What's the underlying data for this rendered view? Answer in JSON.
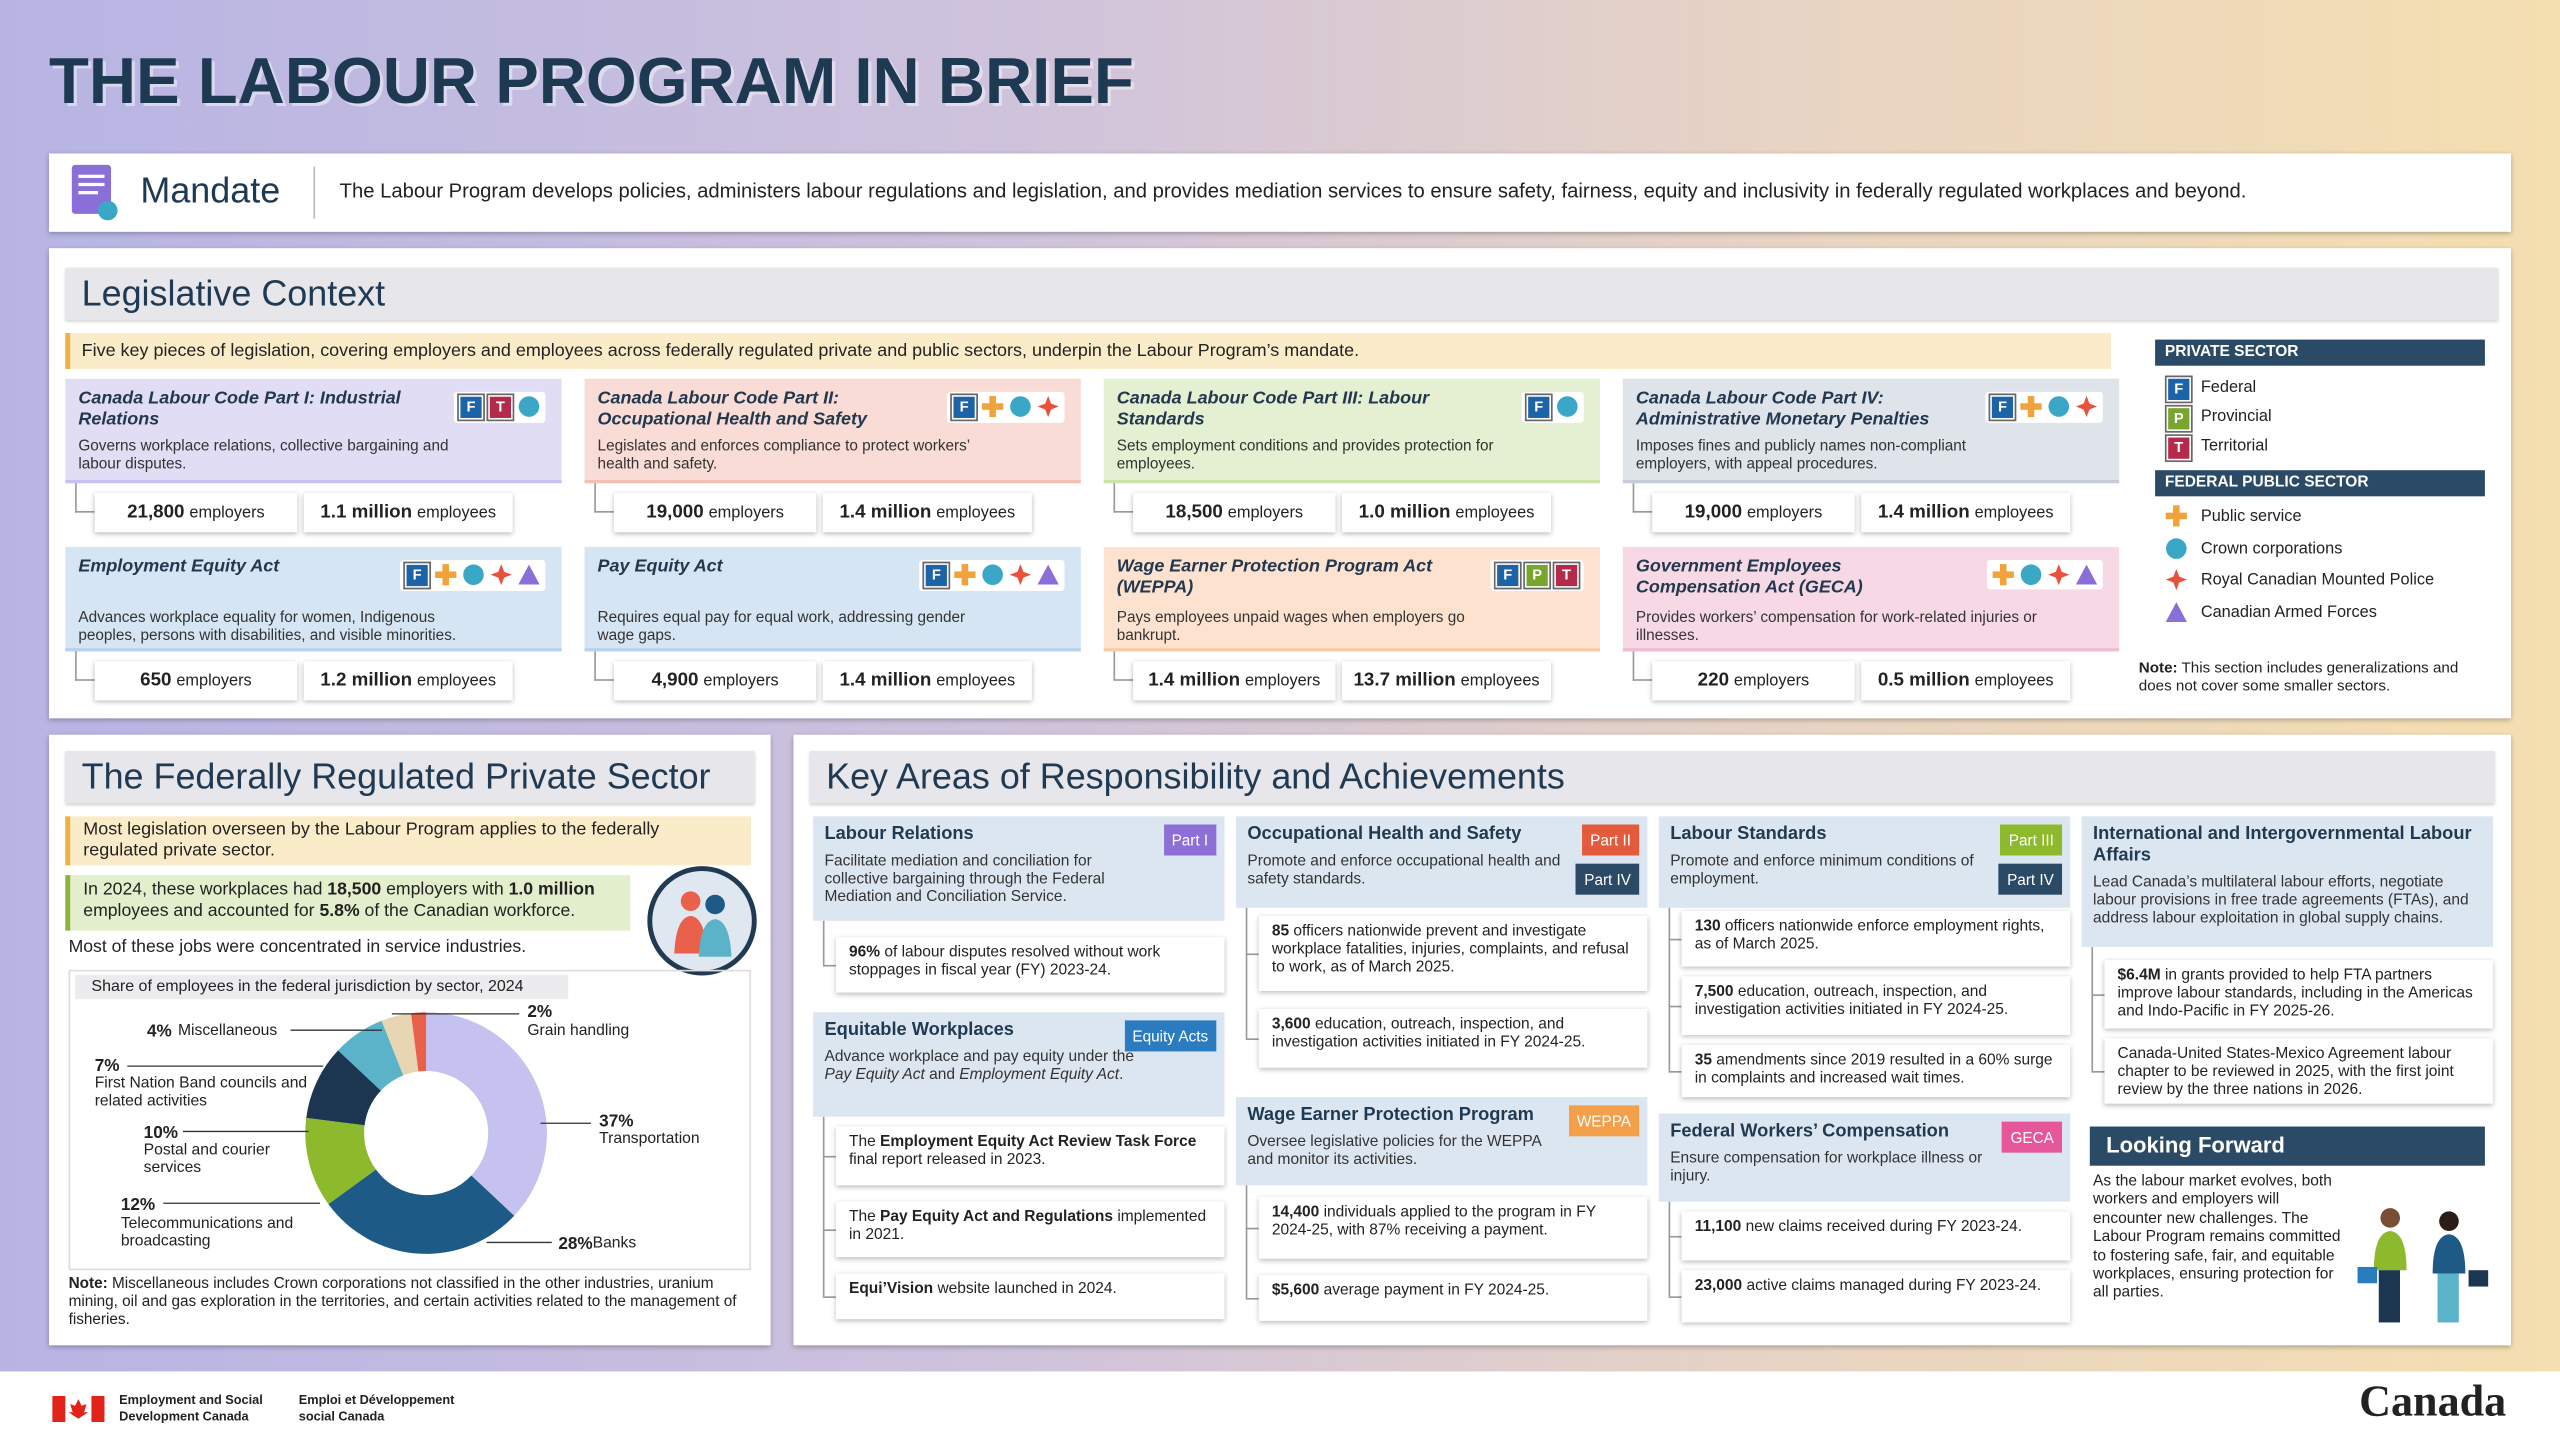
{
  "header": {
    "title": "THE LABOUR PROGRAM IN BRIEF"
  },
  "mandate": {
    "label": "Mandate",
    "text": "The Labour Program develops policies, administers labour regulations and legislation, and provides mediation services to ensure safety, fairness, equity and inclusivity in federally regulated workplaces and beyond."
  },
  "legislative_context": {
    "title": "Legislative Context",
    "intro": "Five key pieces of legislation, covering employers and employees across federally regulated private and public sectors, underpin the Labour Program’s mandate.",
    "acts": [
      {
        "name": "Canada Labour Code Part I: Industrial Relations",
        "description": "Governs workplace relations, collective bargaining and labour disputes.",
        "badges": [
          "F",
          "T"
        ],
        "stats": [
          {
            "value": "21,800",
            "unit": "employers"
          },
          {
            "value": "1.1 million",
            "unit": "employees"
          }
        ]
      },
      {
        "name": "Canada Labour Code Part II: Occupational Health and Safety",
        "description": "Legislates and enforces compliance to protect workers’ health and safety.",
        "badges": [
          "F"
        ],
        "stats": [
          {
            "value": "19,000",
            "unit": "employers"
          },
          {
            "value": "1.4 million",
            "unit": "employees"
          }
        ]
      },
      {
        "name": "Canada Labour Code Part III: Labour Standards",
        "description": "Sets employment conditions and provides protection for employees.",
        "badges": [
          "F"
        ],
        "stats": [
          {
            "value": "18,500",
            "unit": "employers"
          },
          {
            "value": "1.0 million",
            "unit": "employees"
          }
        ]
      },
      {
        "name": "Canada Labour Code Part IV: Administrative Monetary Penalties",
        "description": "Imposes fines and publicly names non-compliant employers, with appeal procedures.",
        "badges": [
          "F"
        ],
        "stats": [
          {
            "value": "19,000",
            "unit": "employers"
          },
          {
            "value": "1.4 million",
            "unit": "employees"
          }
        ]
      },
      {
        "name": "Employment Equity Act",
        "description": "Advances workplace equality for women, Indigenous peoples, persons with disabilities, and visible minorities.",
        "badges": [
          "F"
        ],
        "stats": [
          {
            "value": "650",
            "unit": "employers"
          },
          {
            "value": "1.2 million",
            "unit": "employees"
          }
        ]
      },
      {
        "name": "Pay Equity Act",
        "description": "Requires equal pay for equal work, addressing gender wage gaps.",
        "badges": [
          "F"
        ],
        "stats": [
          {
            "value": "4,900",
            "unit": "employers"
          },
          {
            "value": "1.4 million",
            "unit": "employees"
          }
        ]
      },
      {
        "name": "Wage Earner Protection Program Act (WEPPA)",
        "description": "Pays employees unpaid wages when employers go bankrupt.",
        "badges": [
          "F",
          "P",
          "T"
        ],
        "stats": [
          {
            "value": "1.4 million",
            "unit": "employers"
          },
          {
            "value": "13.7 million",
            "unit": "employees"
          }
        ]
      },
      {
        "name": "Government Employees Compensation Act (GECA)",
        "description": "Provides workers’ compensation for work-related injuries or illnesses.",
        "badges": [],
        "stats": [
          {
            "value": "220",
            "unit": "employers"
          },
          {
            "value": "0.5 million",
            "unit": "employees"
          }
        ]
      }
    ]
  },
  "legend": {
    "private_title": "PRIVATE SECTOR",
    "private_items": [
      {
        "icon": "F",
        "label": "Federal",
        "color": "#1d63a8"
      },
      {
        "icon": "P",
        "label": "Provincial",
        "color": "#77a52e"
      },
      {
        "icon": "T",
        "label": "Territorial",
        "color": "#b42a4a"
      }
    ],
    "public_title": "FEDERAL PUBLIC SECTOR",
    "public_items": [
      "Public service",
      "Crown corporations",
      "Royal Canadian Mounted Police",
      "Canadian Armed Forces"
    ],
    "note": [
      {
        "b": "Note:"
      },
      " This section includes generalizations and does not cover some smaller sectors."
    ]
  },
  "private_sector": {
    "title": "The Federally Regulated Private Sector",
    "intro": "Most legislation overseen by the Labour Program applies to the federally regulated private sector.",
    "highlight": [
      "In 2024, these workplaces had ",
      {
        "b": "18,500"
      },
      " employers with ",
      {
        "b": "1.0 million"
      },
      " employees and accounted for ",
      {
        "b": "5.8%"
      },
      " of the Canadian workforce."
    ],
    "concentration": "Most of these jobs were concentrated in service industries.",
    "note": [
      {
        "b": "Note:"
      },
      " Miscellaneous includes Crown corporations not classified in the other industries, uranium mining, oil and gas exploration in the territories, and certain activities related to the management of fisheries."
    ]
  },
  "chart_data": {
    "type": "pie",
    "title": "Share of employees in the federal jurisdiction by sector, 2024",
    "categories": [
      "Transportation",
      "Banks",
      "Telecommunications and broadcasting",
      "Postal and courier services",
      "First Nation Band councils and related activities",
      "Miscellaneous",
      "Grain handling"
    ],
    "values": [
      37,
      28,
      12,
      10,
      7,
      4,
      2
    ],
    "value_labels": [
      "37%",
      "28%",
      "12%",
      "10%",
      "7%",
      "4%",
      "2%"
    ],
    "colors": [
      "#c6c2f0",
      "#1d5a86",
      "#8dba2c",
      "#1c3551",
      "#5ab3c9",
      "#e8d6b2",
      "#e9604b"
    ]
  },
  "key_areas": {
    "title": "Key Areas of Responsibility and Achievements",
    "sections": [
      {
        "title": "Labour Relations",
        "tags": [
          {
            "label": "Part I",
            "color": "#8e6fd8"
          }
        ],
        "description": "Facilitate mediation and conciliation for collective bargaining through the Federal Mediation and Conciliation Service.",
        "items": [
          [
            {
              "b": "96%"
            },
            " of labour disputes resolved without work stoppages in fiscal year (FY) 2023-24."
          ]
        ]
      },
      {
        "title": "Equitable Workplaces",
        "tags": [
          {
            "label": "Equity Acts",
            "color": "#2b7bc0"
          }
        ],
        "description": [
          "Advance workplace and pay equity under the ",
          {
            "i": "Pay Equity Act"
          },
          " and ",
          {
            "i": "Employment Equity Act"
          },
          "."
        ],
        "items": [
          [
            "The ",
            {
              "b": "Employment Equity Act Review Task Force"
            },
            " final report released in 2023."
          ],
          [
            "The ",
            {
              "b": "Pay Equity Act and Regulations"
            },
            " implemented in 2021."
          ],
          [
            {
              "b": "Equi’Vision"
            },
            " website launched in 2024."
          ]
        ]
      },
      {
        "title": "Occupational Health and Safety",
        "tags": [
          {
            "label": "Part II",
            "color": "#e45a3d"
          },
          {
            "label": "Part IV",
            "color": "#2b4a66"
          }
        ],
        "description": "Promote and enforce occupational health and safety standards.",
        "items": [
          [
            {
              "b": "85"
            },
            " officers nationwide prevent and investigate workplace fatalities, injuries, complaints, and refusal to work, as of March 2025."
          ],
          [
            {
              "b": "3,600"
            },
            " education, outreach, inspection, and investigation activities initiated in FY 2024-25."
          ]
        ]
      },
      {
        "title": "Wage Earner Protection Program",
        "tags": [
          {
            "label": "WEPPA",
            "color": "#f4a04a"
          }
        ],
        "description": "Oversee legislative policies for the WEPPA and monitor its activities.",
        "items": [
          [
            {
              "b": "14,400"
            },
            " individuals applied to the program in FY 2024-25, with 87% receiving a payment."
          ],
          [
            {
              "b": "$5,600"
            },
            " average payment in FY 2024-25."
          ]
        ]
      },
      {
        "title": "Labour Standards",
        "tags": [
          {
            "label": "Part III",
            "color": "#8dba2c"
          },
          {
            "label": "Part IV",
            "color": "#2b4a66"
          }
        ],
        "description": "Promote and enforce minimum conditions of employment.",
        "items": [
          [
            {
              "b": "130"
            },
            " officers nationwide enforce employment rights, as of March 2025."
          ],
          [
            {
              "b": "7,500"
            },
            " education, outreach, inspection, and investigation activities initiated in FY 2024-25."
          ],
          [
            {
              "b": "35"
            },
            " amendments since 2019 resulted in a 60% surge in complaints and increased wait times."
          ]
        ]
      },
      {
        "title": "Federal Workers’ Compensation",
        "tags": [
          {
            "label": "GECA",
            "color": "#e6569b"
          }
        ],
        "description": "Ensure compensation for workplace illness or injury.",
        "items": [
          [
            {
              "b": "11,100"
            },
            " new claims received during FY 2023-24."
          ],
          [
            {
              "b": "23,000"
            },
            " active claims managed during FY 2023-24."
          ]
        ]
      },
      {
        "title": "International and Intergovernmental Labour Affairs",
        "description": "Lead Canada’s multilateral labour efforts, negotiate labour provisions in free trade agreements (FTAs), and address labour exploitation in global supply chains.",
        "items": [
          [
            {
              "b": "$6.4M"
            },
            " in grants provided to help FTA partners improve labour standards, including in the Americas and Indo-Pacific in FY 2025-26."
          ],
          [
            "Canada-United States-Mexico Agreement labour chapter to be reviewed in 2025, with the first joint review by the three nations in 2026."
          ]
        ]
      }
    ],
    "looking_forward": {
      "title": "Looking Forward",
      "text": "As the labour market evolves, both workers and employers will encounter new challenges. The Labour Program remains committed to fostering safe, fair, and equitable workplaces, ensuring protection for all parties."
    }
  },
  "footer": {
    "department_en": "Employment and Social Development Canada",
    "department_fr": "Emploi et Développement social Canada",
    "wordmark": "Canada"
  }
}
